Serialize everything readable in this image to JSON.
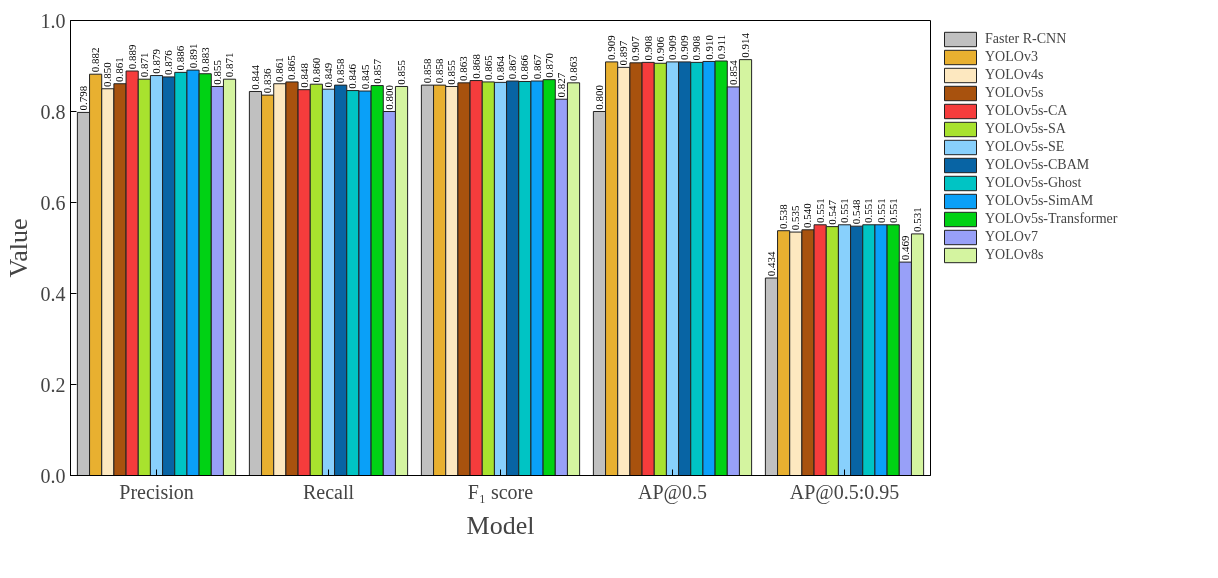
{
  "chart_data": {
    "type": "bar",
    "xlabel": "Model",
    "ylabel": "Value",
    "categories": [
      "Precision",
      "Recall",
      "F₁ score",
      "AP@0.5",
      "AP@0.5:0.95"
    ],
    "ylim": [
      0,
      1
    ],
    "yticks": [
      {
        "value": 0,
        "label": "0.0"
      },
      {
        "value": 0.2,
        "label": "0.2"
      },
      {
        "value": 0.4,
        "label": "0.4"
      },
      {
        "value": 0.6,
        "label": "0.6"
      },
      {
        "value": 0.8,
        "label": "0.8"
      },
      {
        "value": 1,
        "label": "1.0"
      }
    ],
    "grid": false,
    "legend": "top right",
    "series": [
      {
        "name": "Faster R-CNN",
        "color": "#c0c0c0",
        "values": [
          0.798,
          0.844,
          0.858,
          0.8,
          0.434
        ],
        "value_labels": [
          "0.798",
          "0.844",
          "0.858",
          "0.800",
          "0.434"
        ]
      },
      {
        "name": "YOLOv3",
        "color": "#e8b030",
        "values": [
          0.882,
          0.836,
          0.858,
          0.909,
          0.538
        ],
        "value_labels": [
          "0.882",
          "0.836",
          "0.858",
          "0.909",
          "0.538"
        ]
      },
      {
        "name": "YOLOv4s",
        "color": "#fde8c0",
        "values": [
          0.85,
          0.861,
          0.855,
          0.897,
          0.535
        ],
        "value_labels": [
          "0.850",
          "0.861",
          "0.855",
          "0.897",
          "0.535"
        ]
      },
      {
        "name": "YOLOv5s",
        "color": "#a8520e",
        "values": [
          0.861,
          0.865,
          0.863,
          0.907,
          0.54
        ],
        "value_labels": [
          "0.861",
          "0.865",
          "0.863",
          "0.907",
          "0.540"
        ]
      },
      {
        "name": "YOLOv5s-CA",
        "color": "#f53c3c",
        "values": [
          0.889,
          0.848,
          0.868,
          0.908,
          0.551
        ],
        "value_labels": [
          "0.889",
          "0.848",
          "0.868",
          "0.908",
          "0.551"
        ]
      },
      {
        "name": "YOLOv5s-SA",
        "color": "#a8e22e",
        "values": [
          0.871,
          0.86,
          0.865,
          0.906,
          0.547
        ],
        "value_labels": [
          "0.871",
          "0.860",
          "0.865",
          "0.906",
          "0.547"
        ]
      },
      {
        "name": "YOLOv5s-SE",
        "color": "#88d0fc",
        "values": [
          0.879,
          0.849,
          0.864,
          0.909,
          0.551
        ],
        "value_labels": [
          "0.879",
          "0.849",
          "0.864",
          "0.909",
          "0.551"
        ]
      },
      {
        "name": "YOLOv5s-CBAM",
        "color": "#0864a4",
        "values": [
          0.876,
          0.858,
          0.867,
          0.909,
          0.548
        ],
        "value_labels": [
          "0.876",
          "0.858",
          "0.867",
          "0.909",
          "0.548"
        ]
      },
      {
        "name": "YOLOv5s-Ghost",
        "color": "#00c4c4",
        "values": [
          0.886,
          0.846,
          0.866,
          0.908,
          0.551
        ],
        "value_labels": [
          "0.886",
          "0.846",
          "0.866",
          "0.908",
          "0.551"
        ]
      },
      {
        "name": "YOLOv5s-SimAM",
        "color": "#0aa0f8",
        "values": [
          0.891,
          0.845,
          0.867,
          0.91,
          0.551
        ],
        "value_labels": [
          "0.891",
          "0.845",
          "0.867",
          "0.910",
          "0.551"
        ]
      },
      {
        "name": "YOLOv5s-Transformer",
        "color": "#00d214",
        "values": [
          0.883,
          0.857,
          0.87,
          0.911,
          0.551
        ],
        "value_labels": [
          "0.883",
          "0.857",
          "0.870",
          "0.911",
          "0.551"
        ]
      },
      {
        "name": "YOLOv7",
        "color": "#98a0f8",
        "values": [
          0.855,
          0.8,
          0.827,
          0.854,
          0.469
        ],
        "value_labels": [
          "0.855",
          "0.800",
          "0.827",
          "0.854",
          "0.469"
        ]
      },
      {
        "name": "YOLOv8s",
        "color": "#d4f4a0",
        "values": [
          0.871,
          0.855,
          0.863,
          0.914,
          0.531
        ],
        "value_labels": [
          "0.871",
          "0.855",
          "0.863",
          "0.914",
          "0.531"
        ]
      }
    ]
  }
}
